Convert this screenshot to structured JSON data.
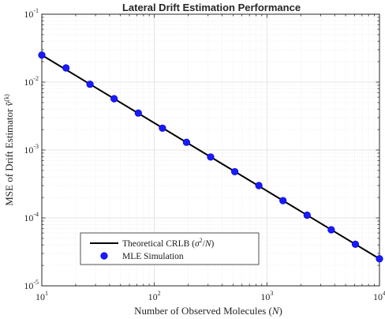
{
  "chart_data": {
    "type": "line",
    "title": "Lateral Drift Estimation Performance",
    "xlabel": "Number of Observed Molecules (N)",
    "ylabel": "MSE of Drift Estimator v̂(k)",
    "xscale": "log",
    "yscale": "log",
    "xlim": [
      10,
      10000
    ],
    "ylim": [
      1e-05,
      0.1
    ],
    "x_ticks": [
      {
        "value": 10,
        "base": "10",
        "exp": "1"
      },
      {
        "value": 100,
        "base": "10",
        "exp": "2"
      },
      {
        "value": 1000,
        "base": "10",
        "exp": "3"
      },
      {
        "value": 10000,
        "base": "10",
        "exp": "4"
      }
    ],
    "y_ticks": [
      {
        "value": 1e-05,
        "base": "10",
        "exp": "-5"
      },
      {
        "value": 0.0001,
        "base": "10",
        "exp": "-4"
      },
      {
        "value": 0.001,
        "base": "10",
        "exp": "-3"
      },
      {
        "value": 0.01,
        "base": "10",
        "exp": "-2"
      },
      {
        "value": 0.1,
        "base": "10",
        "exp": "-1"
      }
    ],
    "grid": true,
    "minor_grid": true,
    "legend_position": "bottom-left",
    "series": [
      {
        "name": "Theoretical CRLB (σ²/N)",
        "style": "line",
        "color": "#000000",
        "x": [
          10,
          10000
        ],
        "y": [
          0.025,
          2.5e-05
        ]
      },
      {
        "name": "MLE Simulation",
        "style": "markers",
        "color": "#1a1aff",
        "x": [
          10,
          16.4,
          26.8,
          43.9,
          72,
          118,
          193,
          316,
          518,
          848,
          1389,
          2276,
          3728,
          6105,
          10000
        ],
        "y": [
          0.025,
          0.0162,
          0.0093,
          0.0057,
          0.0035,
          0.0021,
          0.0013,
          0.00079,
          0.00048,
          0.0003,
          0.00018,
          0.00011,
          6.7e-05,
          4.1e-05,
          2.5e-05
        ]
      }
    ]
  }
}
